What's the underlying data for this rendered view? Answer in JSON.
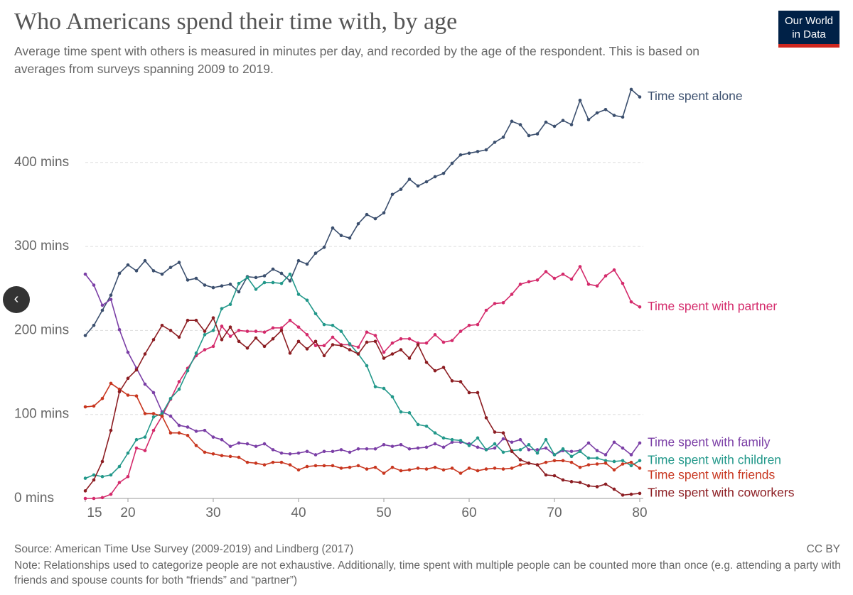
{
  "chart_data": {
    "type": "line",
    "title": "Who Americans spend their time with, by age",
    "subtitle": "Average time spent with others is measured in minutes per day, and recorded by the age of the respondent. This is based on averages from surveys spanning 2009 to 2019.",
    "source": "Source: American Time Use Survey (2009-2019) and Lindberg (2017)",
    "note": "Note: Relationships used to categorize people are not exhaustive. Additionally, time spent with multiple people can be counted more than once (e.g. attending a party with friends and spouse counts for both “friends” and “partner”)",
    "license": "CC BY",
    "logo": "Our World in Data",
    "grid": true,
    "xlim": [
      15,
      80
    ],
    "xticks": [
      15,
      20,
      30,
      40,
      50,
      60,
      70,
      80
    ],
    "ylim": [
      0,
      500
    ],
    "yticks": [
      {
        "value": 0,
        "label": "0 mins"
      },
      {
        "value": 100,
        "label": "100 mins"
      },
      {
        "value": 200,
        "label": "200 mins"
      },
      {
        "value": 300,
        "label": "300 mins"
      },
      {
        "value": 400,
        "label": "400 mins"
      }
    ],
    "x": [
      15,
      16,
      17,
      18,
      19,
      20,
      21,
      22,
      23,
      24,
      25,
      26,
      27,
      28,
      29,
      30,
      31,
      32,
      33,
      34,
      35,
      36,
      37,
      38,
      39,
      40,
      41,
      42,
      43,
      44,
      45,
      46,
      47,
      48,
      49,
      50,
      51,
      52,
      53,
      54,
      55,
      56,
      57,
      58,
      59,
      60,
      61,
      62,
      63,
      64,
      65,
      66,
      67,
      68,
      69,
      70,
      71,
      72,
      73,
      74,
      75,
      76,
      77,
      78,
      79,
      80
    ],
    "series": [
      {
        "name": "Time spent alone",
        "color": "#3b4f6e",
        "values": [
          194,
          206,
          224,
          242,
          268,
          278,
          271,
          283,
          271,
          267,
          275,
          281,
          260,
          262,
          254,
          251,
          253,
          255,
          246,
          264,
          263,
          265,
          273,
          268,
          259,
          283,
          279,
          292,
          299,
          322,
          313,
          310,
          327,
          338,
          333,
          340,
          362,
          368,
          380,
          372,
          377,
          383,
          387,
          399,
          409,
          411,
          413,
          415,
          424,
          430,
          449,
          445,
          432,
          434,
          448,
          443,
          450,
          445,
          474,
          451,
          459,
          463,
          456,
          454,
          487,
          478
        ]
      },
      {
        "name": "Time spent with partner",
        "color": "#d42a6b",
        "values": [
          0,
          0,
          1,
          5,
          19,
          26,
          60,
          57,
          81,
          98,
          118,
          139,
          155,
          170,
          177,
          181,
          205,
          193,
          200,
          199,
          199,
          198,
          203,
          203,
          212,
          204,
          195,
          182,
          182,
          192,
          183,
          183,
          180,
          198,
          194,
          174,
          185,
          190,
          190,
          185,
          185,
          195,
          186,
          188,
          199,
          206,
          207,
          224,
          232,
          233,
          243,
          255,
          258,
          260,
          270,
          262,
          267,
          261,
          276,
          255,
          253,
          265,
          272,
          256,
          234,
          228
        ]
      },
      {
        "name": "Time spent with family",
        "color": "#7b3fa6",
        "values": [
          267,
          254,
          230,
          237,
          201,
          174,
          155,
          136,
          126,
          103,
          98,
          87,
          85,
          80,
          81,
          73,
          70,
          62,
          66,
          65,
          62,
          65,
          58,
          54,
          53,
          54,
          56,
          52,
          56,
          56,
          58,
          55,
          59,
          59,
          59,
          64,
          62,
          64,
          59,
          60,
          61,
          65,
          61,
          67,
          67,
          65,
          61,
          58,
          60,
          71,
          67,
          70,
          58,
          58,
          60,
          52,
          57,
          56,
          57,
          66,
          57,
          52,
          67,
          60,
          52,
          66
        ]
      },
      {
        "name": "Time spent with children",
        "color": "#22988a",
        "values": [
          24,
          28,
          26,
          28,
          38,
          54,
          70,
          73,
          97,
          101,
          119,
          130,
          152,
          173,
          195,
          200,
          226,
          231,
          256,
          263,
          249,
          257,
          257,
          256,
          267,
          243,
          236,
          220,
          207,
          206,
          199,
          184,
          172,
          158,
          133,
          131,
          121,
          103,
          102,
          88,
          86,
          78,
          72,
          70,
          69,
          63,
          72,
          58,
          65,
          55,
          57,
          58,
          64,
          54,
          70,
          52,
          59,
          50,
          56,
          48,
          48,
          45,
          44,
          45,
          39,
          45
        ]
      },
      {
        "name": "Time spent with friends",
        "color": "#c8361f",
        "values": [
          109,
          110,
          119,
          137,
          130,
          123,
          122,
          101,
          101,
          98,
          78,
          78,
          75,
          63,
          55,
          53,
          51,
          50,
          49,
          43,
          42,
          40,
          43,
          43,
          40,
          34,
          38,
          39,
          39,
          39,
          36,
          37,
          39,
          35,
          37,
          30,
          37,
          33,
          34,
          36,
          35,
          37,
          34,
          36,
          30,
          36,
          33,
          35,
          36,
          35,
          36,
          40,
          42,
          40,
          43,
          45,
          45,
          43,
          37,
          40,
          41,
          42,
          34,
          41,
          43,
          36
        ]
      },
      {
        "name": "Time spent with coworkers",
        "color": "#8c1d22",
        "values": [
          9,
          22,
          44,
          81,
          127,
          143,
          153,
          172,
          189,
          206,
          200,
          192,
          212,
          212,
          199,
          215,
          189,
          204,
          187,
          179,
          191,
          181,
          190,
          200,
          173,
          187,
          178,
          187,
          170,
          183,
          182,
          177,
          172,
          186,
          187,
          167,
          172,
          177,
          167,
          183,
          162,
          152,
          156,
          140,
          139,
          126,
          126,
          96,
          79,
          78,
          56,
          46,
          42,
          40,
          28,
          27,
          22,
          20,
          19,
          15,
          14,
          17,
          11,
          4,
          5,
          6
        ]
      }
    ]
  }
}
